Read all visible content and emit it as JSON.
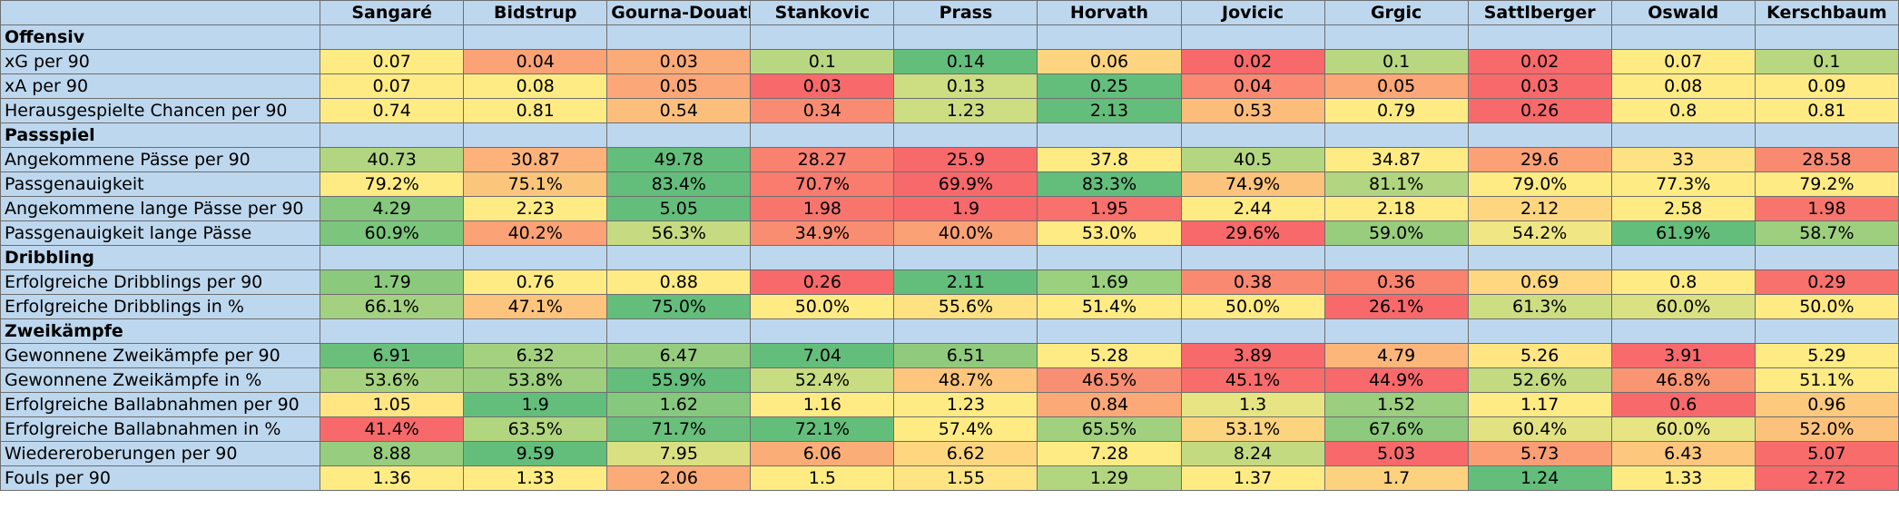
{
  "players": [
    "Sangaré",
    "Bidstrup",
    "Gourna-Douath",
    "Stankovic",
    "Prass",
    "Horvath",
    "Jovicic",
    "Grgic",
    "Sattlberger",
    "Oswald",
    "Kerschbaum"
  ],
  "colors": {
    "header_bg": "#bdd7ee",
    "scale": [
      "#f8696b",
      "#fbaa77",
      "#ffeb84",
      "#b1d580",
      "#63be7b"
    ]
  },
  "rows": [
    {
      "type": "section",
      "label": "Offensiv"
    },
    {
      "type": "data",
      "label": "xG per 90",
      "values": [
        "0.07",
        "0.04",
        "0.03",
        "0.1",
        "0.14",
        "0.06",
        "0.02",
        "0.1",
        "0.02",
        "0.07",
        "0.1"
      ],
      "colors": [
        "#ffeb84",
        "#fba376",
        "#fbab77",
        "#b8d780",
        "#63be7b",
        "#fdd580",
        "#f8696b",
        "#b8d780",
        "#f8696b",
        "#ffeb84",
        "#b8d780"
      ]
    },
    {
      "type": "data",
      "label": "xA per 90",
      "values": [
        "0.07",
        "0.08",
        "0.05",
        "0.03",
        "0.13",
        "0.25",
        "0.04",
        "0.05",
        "0.03",
        "0.08",
        "0.09"
      ],
      "colors": [
        "#ffeb84",
        "#ffeb84",
        "#fca777",
        "#f8696b",
        "#cddd82",
        "#63be7b",
        "#fa8872",
        "#fca777",
        "#f8696b",
        "#ffeb84",
        "#ffeb84"
      ]
    },
    {
      "type": "data",
      "label": "Herausgespielte Chancen per 90",
      "values": [
        "0.74",
        "0.81",
        "0.54",
        "0.34",
        "1.23",
        "2.13",
        "0.53",
        "0.79",
        "0.26",
        "0.8",
        "0.81"
      ],
      "colors": [
        "#ffeb84",
        "#ffeb84",
        "#fcbf7b",
        "#f98b72",
        "#cddd82",
        "#63be7b",
        "#fcbd7b",
        "#ffeb84",
        "#f8696b",
        "#ffeb84",
        "#ffeb84"
      ]
    },
    {
      "type": "section",
      "label": "Passspiel"
    },
    {
      "type": "data",
      "label": "Angekommene Pässe per 90",
      "values": [
        "40.73",
        "30.87",
        "49.78",
        "28.27",
        "25.9",
        "37.8",
        "40.5",
        "34.87",
        "29.6",
        "33",
        "28.58"
      ],
      "colors": [
        "#b1d580",
        "#fcb27a",
        "#63be7b",
        "#f98170",
        "#f8696b",
        "#ffeb84",
        "#b5d680",
        "#ffeb84",
        "#fca076",
        "#ffe283",
        "#f98a72"
      ]
    },
    {
      "type": "data",
      "label": "Passgenauigkeit",
      "values": [
        "79.2%",
        "75.1%",
        "83.4%",
        "70.7%",
        "69.9%",
        "83.3%",
        "74.9%",
        "81.1%",
        "79.0%",
        "77.3%",
        "79.2%"
      ],
      "colors": [
        "#ffeb84",
        "#fcc57c",
        "#63be7b",
        "#f97c6f",
        "#f8696b",
        "#63be7b",
        "#fcc37c",
        "#b1d580",
        "#ffeb84",
        "#ffeb84",
        "#ffeb84"
      ]
    },
    {
      "type": "data",
      "label": "Angekommene lange Pässe per 90",
      "values": [
        "4.29",
        "2.23",
        "5.05",
        "1.98",
        "1.9",
        "1.95",
        "2.44",
        "2.18",
        "2.12",
        "2.58",
        "1.98"
      ],
      "colors": [
        "#86c87d",
        "#ffeb84",
        "#63be7b",
        "#f8756d",
        "#f8696b",
        "#f8716c",
        "#ffeb84",
        "#ffeb84",
        "#fed680",
        "#ffeb84",
        "#f8756d"
      ]
    },
    {
      "type": "data",
      "label": "Passgenauigkeit lange Pässe",
      "values": [
        "60.9%",
        "40.2%",
        "56.3%",
        "34.9%",
        "40.0%",
        "53.0%",
        "29.6%",
        "59.0%",
        "54.2%",
        "61.9%",
        "58.7%"
      ],
      "colors": [
        "#7cc57c",
        "#fba276",
        "#c6db81",
        "#f98d72",
        "#fba176",
        "#ffeb84",
        "#f8696b",
        "#98cd7e",
        "#f0e784",
        "#63be7b",
        "#9dcf7e"
      ]
    },
    {
      "type": "section",
      "label": "Dribbling"
    },
    {
      "type": "data",
      "label": "Erfolgreiche Dribblings per 90",
      "values": [
        "1.79",
        "0.76",
        "0.88",
        "0.26",
        "2.11",
        "1.69",
        "0.38",
        "0.36",
        "0.69",
        "0.8",
        "0.29"
      ],
      "colors": [
        "#8bca7d",
        "#ffeb84",
        "#ffeb84",
        "#f8696b",
        "#63be7b",
        "#9ad07e",
        "#f98971",
        "#f9836f",
        "#fed780",
        "#ffeb84",
        "#f8716c"
      ]
    },
    {
      "type": "data",
      "label": "Erfolgreiche Dribblings in %",
      "values": [
        "66.1%",
        "47.1%",
        "75.0%",
        "50.0%",
        "55.6%",
        "51.4%",
        "50.0%",
        "26.1%",
        "61.3%",
        "60.0%",
        "50.0%"
      ],
      "colors": [
        "#a4d17f",
        "#fcc47c",
        "#63be7b",
        "#ffeb84",
        "#fee282",
        "#ffeb84",
        "#ffeb84",
        "#f8696b",
        "#cddd82",
        "#dae183",
        "#ffeb84"
      ]
    },
    {
      "type": "section",
      "label": "Zweikämpfe"
    },
    {
      "type": "data",
      "label": "Gewonnene Zweikämpfe per 90",
      "values": [
        "6.91",
        "6.32",
        "6.47",
        "7.04",
        "6.51",
        "5.28",
        "3.89",
        "4.79",
        "5.26",
        "3.91",
        "5.29"
      ],
      "colors": [
        "#6ac07b",
        "#a4d17f",
        "#95cc7e",
        "#63be7b",
        "#90cb7d",
        "#ffeb84",
        "#f8696b",
        "#fcb67a",
        "#ffe683",
        "#f86a6b",
        "#ffeb84"
      ]
    },
    {
      "type": "data",
      "label": "Gewonnene Zweikämpfe in %",
      "values": [
        "53.6%",
        "53.8%",
        "55.9%",
        "52.4%",
        "48.7%",
        "46.5%",
        "45.1%",
        "44.9%",
        "52.6%",
        "46.8%",
        "51.1%"
      ],
      "colors": [
        "#a6d27f",
        "#9dcf7e",
        "#63be7b",
        "#c8dc81",
        "#fec67d",
        "#f98f72",
        "#f86c6b",
        "#f8696b",
        "#c3da81",
        "#f99573",
        "#ffeb84"
      ]
    },
    {
      "type": "data",
      "label": "Erfolgreiche Ballabnahmen per 90",
      "values": [
        "1.05",
        "1.9",
        "1.62",
        "1.16",
        "1.23",
        "0.84",
        "1.3",
        "1.52",
        "1.17",
        "0.6",
        "0.96"
      ],
      "colors": [
        "#ffe683",
        "#63be7b",
        "#86c87d",
        "#ffeb84",
        "#ffeb84",
        "#fbaa77",
        "#e6e483",
        "#9bce7e",
        "#ffeb84",
        "#f8696b",
        "#fcc97d"
      ]
    },
    {
      "type": "data",
      "label": "Erfolgreiche Ballabnahmen in %",
      "values": [
        "41.4%",
        "63.5%",
        "71.7%",
        "72.1%",
        "57.4%",
        "65.5%",
        "53.1%",
        "67.6%",
        "60.4%",
        "60.0%",
        "52.0%"
      ],
      "colors": [
        "#f8696b",
        "#b2d580",
        "#69bf7b",
        "#63be7b",
        "#ffeb84",
        "#a1d07e",
        "#fcd37f",
        "#8dca7d",
        "#e2e283",
        "#e6e483",
        "#fcc27c"
      ]
    },
    {
      "type": "data",
      "label": "Wiedereroberungen per 90",
      "values": [
        "8.88",
        "9.59",
        "7.95",
        "6.06",
        "6.62",
        "7.28",
        "8.24",
        "5.03",
        "5.73",
        "6.43",
        "5.07"
      ],
      "colors": [
        "#97cd7e",
        "#63be7b",
        "#d9e082",
        "#fbad78",
        "#fed680",
        "#ffeb84",
        "#c4da81",
        "#f8696b",
        "#fb9d75",
        "#fdc77d",
        "#f86d6b"
      ]
    },
    {
      "type": "data",
      "label": "Fouls per 90",
      "values": [
        "1.36",
        "1.33",
        "2.06",
        "1.5",
        "1.55",
        "1.29",
        "1.37",
        "1.7",
        "1.24",
        "1.33",
        "2.72"
      ],
      "colors": [
        "#ffeb84",
        "#ffeb84",
        "#fbab77",
        "#ffeb84",
        "#ffe483",
        "#b2d580",
        "#ffeb84",
        "#fdd27f",
        "#63be7b",
        "#ffeb84",
        "#f8696b"
      ]
    }
  ]
}
